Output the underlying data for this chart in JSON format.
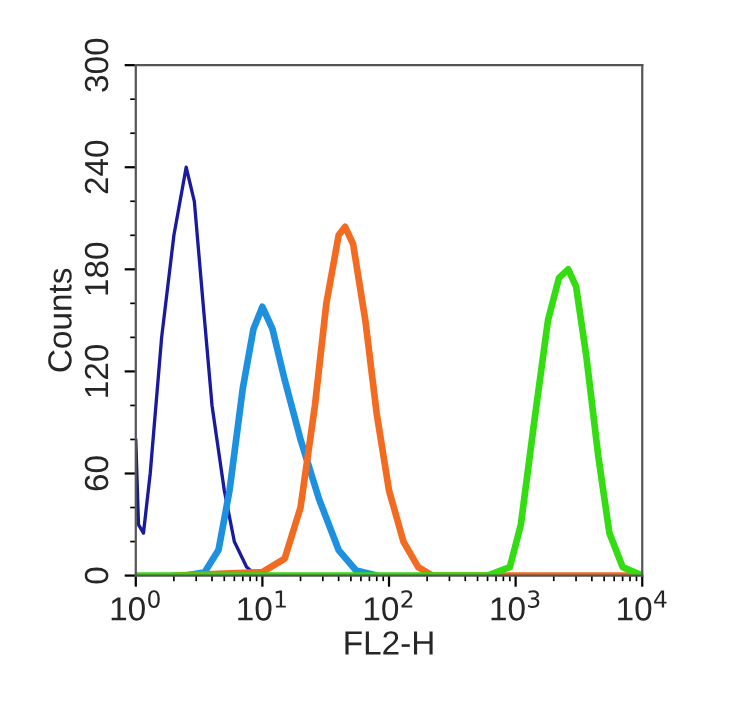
{
  "chart_data": {
    "type": "line",
    "xlabel": "FL2-H",
    "ylabel": "Counts",
    "log": "x",
    "xlim": [
      1,
      10000
    ],
    "ylim": [
      0,
      300
    ],
    "xticks": [
      {
        "value": 1,
        "label": "10$^{0}$"
      },
      {
        "value": 10,
        "label": "10$^{1}$"
      },
      {
        "value": 100,
        "label": "10$^{2}$"
      },
      {
        "value": 1000,
        "label": "10$^{3}$"
      },
      {
        "value": 10000,
        "label": "10$^{4}$"
      }
    ],
    "yticks": [
      0,
      60,
      120,
      180,
      240,
      300
    ],
    "grid": false,
    "legend": false,
    "marker": "none",
    "line_style": "solid",
    "series": [
      {
        "color": "#1a1aa0",
        "x": [
          1,
          1.05,
          1.15,
          1.3,
          1.6,
          2.0,
          2.5,
          2.9,
          3.4,
          4,
          5,
          6,
          7.5,
          9,
          12
        ],
        "values": [
          80,
          30,
          25,
          60,
          140,
          200,
          240,
          220,
          160,
          100,
          50,
          20,
          5,
          0,
          0
        ]
      },
      {
        "color": "#1e90e0",
        "x": [
          2.5,
          3.5,
          4.5,
          5.5,
          7,
          8.5,
          10,
          12,
          15,
          20,
          28,
          40,
          55,
          80
        ],
        "values": [
          0,
          2,
          15,
          50,
          110,
          145,
          158,
          145,
          115,
          80,
          45,
          15,
          3,
          0
        ]
      },
      {
        "color": "#f26b21",
        "x": [
          2,
          10,
          15,
          20,
          26,
          32,
          40,
          45,
          52,
          65,
          80,
          100,
          130,
          170,
          220,
          10000
        ],
        "values": [
          0,
          2,
          10,
          40,
          100,
          160,
          200,
          205,
          195,
          150,
          95,
          50,
          20,
          5,
          0,
          0
        ]
      },
      {
        "color": "#33dd11",
        "x": [
          1,
          600,
          900,
          1100,
          1400,
          1800,
          2200,
          2600,
          3000,
          3600,
          4500,
          5500,
          7000,
          10000
        ],
        "values": [
          0,
          0,
          5,
          30,
          90,
          150,
          175,
          180,
          170,
          130,
          70,
          25,
          5,
          0
        ]
      }
    ]
  }
}
